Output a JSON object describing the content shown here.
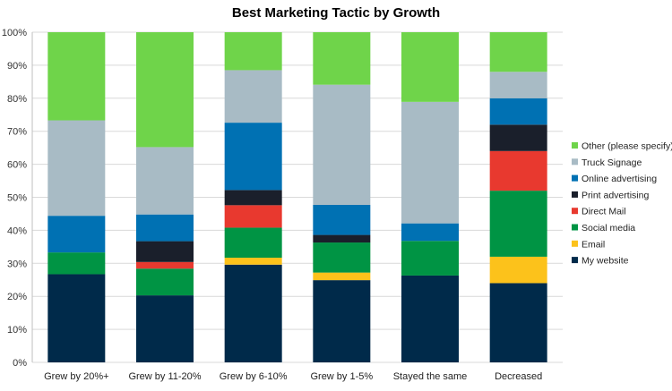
{
  "chart_data": {
    "type": "bar",
    "stacked": true,
    "percent_stacked": true,
    "title": "Best Marketing Tactic by Growth",
    "xlabel": "",
    "ylabel": "",
    "ylim": [
      0,
      100
    ],
    "y_ticks": [
      "0%",
      "10%",
      "20%",
      "30%",
      "40%",
      "50%",
      "60%",
      "70%",
      "80%",
      "90%",
      "100%"
    ],
    "grid": true,
    "legend_position": "right",
    "categories": [
      "Grew by 20%+",
      "Grew by 11-20%",
      "Grew by 6-10%",
      "Grew by 1-5%",
      "Stayed the same",
      "Decreased"
    ],
    "series": [
      {
        "name": "My website",
        "color": "#002a4a",
        "values": [
          26.7,
          20.3,
          29.6,
          24.9,
          26.3,
          24.0
        ]
      },
      {
        "name": "Email",
        "color": "#fcc21b",
        "values": [
          0,
          0,
          2.1,
          2.3,
          0,
          8.0
        ]
      },
      {
        "name": "Social media",
        "color": "#009444",
        "values": [
          6.6,
          8.1,
          9.1,
          9.1,
          10.5,
          20.0
        ]
      },
      {
        "name": "Direct Mail",
        "color": "#e8392f",
        "values": [
          0,
          2.0,
          6.8,
          0,
          0,
          12.0
        ]
      },
      {
        "name": "Print advertising",
        "color": "#1a1f2b",
        "values": [
          0,
          6.3,
          4.6,
          2.3,
          0,
          8.0
        ]
      },
      {
        "name": "Online advertising",
        "color": "#0071b3",
        "values": [
          11.1,
          8.1,
          20.4,
          9.1,
          5.3,
          8.0
        ]
      },
      {
        "name": "Truck Signage",
        "color": "#a8bbc5",
        "values": [
          28.9,
          20.4,
          15.9,
          36.4,
          36.8,
          8.0
        ]
      },
      {
        "name": "Other (please specify)",
        "color": "#6fd44a",
        "values": [
          26.7,
          34.8,
          11.5,
          15.9,
          21.1,
          12.0
        ]
      }
    ]
  }
}
